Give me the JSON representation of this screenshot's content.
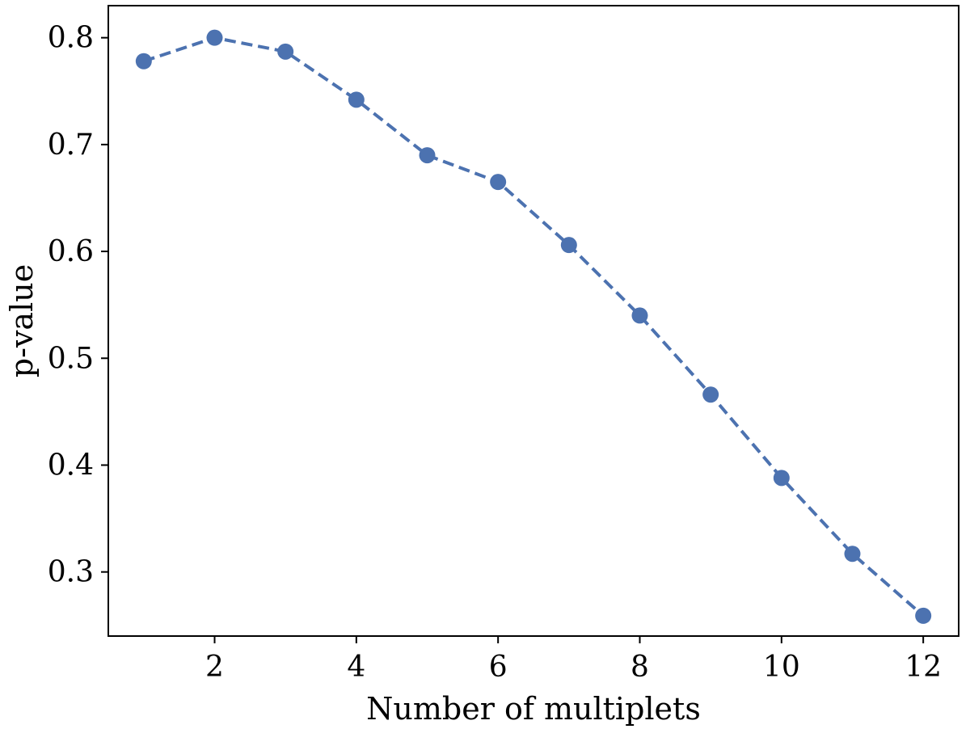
{
  "chart_data": {
    "type": "line",
    "xlabel": "Number of multiplets",
    "ylabel": "p-value",
    "x": [
      1,
      2,
      3,
      4,
      5,
      6,
      7,
      8,
      9,
      10,
      11,
      12
    ],
    "series": [
      {
        "values": [
          0.778,
          0.8,
          0.787,
          0.742,
          0.69,
          0.665,
          0.606,
          0.54,
          0.466,
          0.388,
          0.317,
          0.259
        ]
      }
    ],
    "xlim": [
      0.5,
      12.5
    ],
    "ylim": [
      0.24,
      0.83
    ],
    "xticks": [
      2,
      4,
      6,
      8,
      10,
      12
    ],
    "yticks": [
      0.3,
      0.4,
      0.5,
      0.6,
      0.7,
      0.8
    ],
    "xtick_labels": [
      "2",
      "4",
      "6",
      "8",
      "10",
      "12"
    ],
    "ytick_labels": [
      "0.3",
      "0.4",
      "0.5",
      "0.6",
      "0.7",
      "0.8"
    ],
    "line_style": "dashed",
    "marker": "circle",
    "grid": false,
    "colors": {
      "series": "#4c72b0",
      "axes": "#000000"
    }
  }
}
